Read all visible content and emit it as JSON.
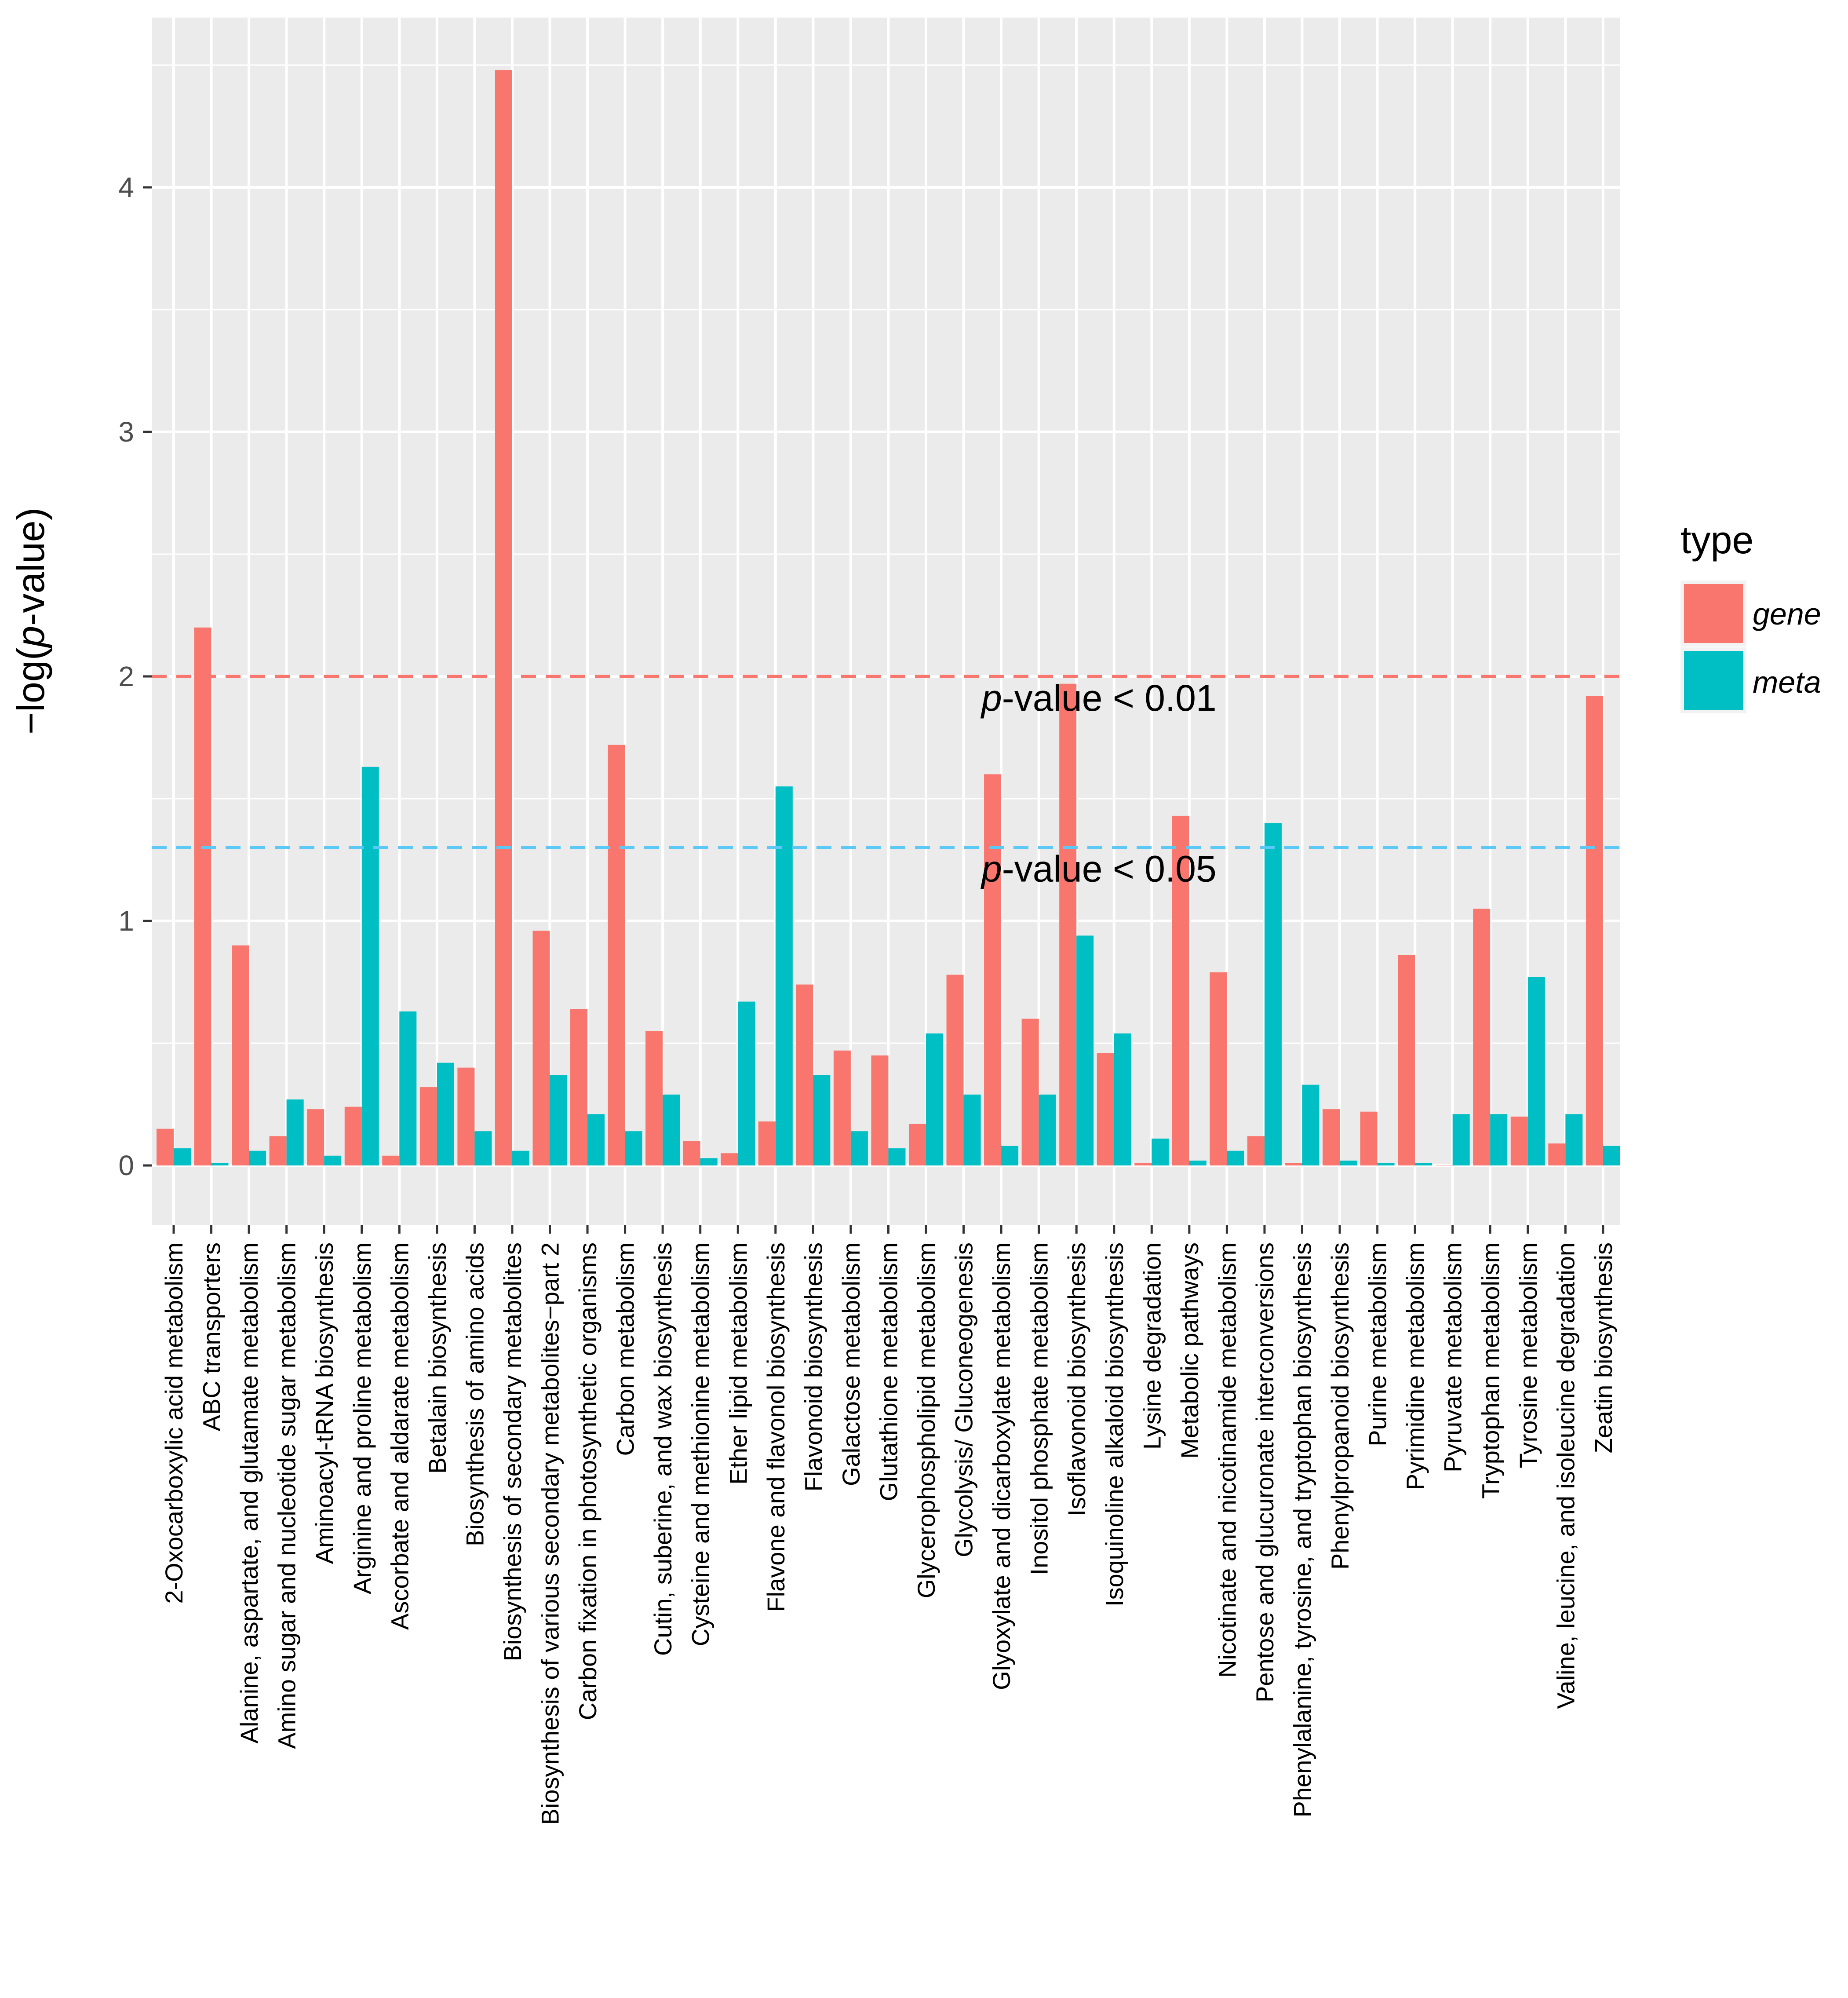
{
  "chart_data": {
    "type": "bar",
    "title": "",
    "xlabel": "",
    "ylabel": "−log(p-value)",
    "ylabel_parts": {
      "prefix": "−log(",
      "italic": "p",
      "suffix": "-value)"
    },
    "ylim": [
      -0.22,
      4.65
    ],
    "yticks": [
      "0",
      "1",
      "2",
      "3",
      "4"
    ],
    "categories": [
      "2-Oxocarboxylic acid metabolism",
      "ABC transporters",
      "Alanine,  aspartate, and glutamate metabolism",
      "Amino sugar and nucleotide sugar metabolism",
      "Aminoacyl-tRNA biosynthesis",
      "Arginine and proline metabolism",
      "Ascorbate and aldarate metabolism",
      "Betalain biosynthesis",
      "Biosynthesis of amino acids",
      "Biosynthesis of secondary metabolites",
      "Biosynthesis of various secondary metabolites−part 2",
      "Carbon fixation in photosynthetic organisms",
      "Carbon metabolism",
      "Cutin, suberine, and wax biosynthesis",
      "Cysteine and methionine metabolism",
      "Ether lipid metabolism",
      "Flavone and flavonol biosynthesis",
      "Flavonoid biosynthesis",
      "Galactose metabolism",
      "Glutathione metabolism",
      "Glycerophospholipid metabolism",
      "Glycolysis/ Gluconeogenesis",
      "Glyoxylate and dicarboxylate metabolism",
      "Inositol phosphate metabolism",
      "Isoflavonoid biosynthesis",
      "Isoquinoline alkaloid biosynthesis",
      "Lysine degradation",
      "Metabolic pathways",
      "Nicotinate and nicotinamide metabolism",
      "Pentose and glucuronate interconversions",
      "Phenylalanine, tyrosine, and tryptophan biosynthesis",
      "Phenylpropanoid biosynthesis",
      "Purine metabolism",
      "Pyrimidine metabolism",
      "Pyruvate metabolism",
      "Tryptophan metabolism",
      "Tyrosine metabolism",
      "Valine, leucine, and isoleucine degradation",
      "Zeatin biosynthesis"
    ],
    "series": [
      {
        "name": "gene",
        "color": "#F8766D",
        "values": [
          0.15,
          2.2,
          0.9,
          0.12,
          0.23,
          0.24,
          0.04,
          0.32,
          0.4,
          4.48,
          0.96,
          0.64,
          1.72,
          0.55,
          0.1,
          0.05,
          0.18,
          0.74,
          0.47,
          0.45,
          0.17,
          0.78,
          1.6,
          0.6,
          1.97,
          0.46,
          0.01,
          1.43,
          0.79,
          0.12,
          0.01,
          0.23,
          0.22,
          0.86,
          0.0,
          1.05,
          0.2,
          0.09,
          1.92
        ]
      },
      {
        "name": "meta",
        "color": "#00BFC4",
        "values": [
          0.07,
          0.01,
          0.06,
          0.27,
          0.04,
          1.63,
          0.63,
          0.42,
          0.14,
          0.06,
          0.37,
          0.21,
          0.14,
          0.29,
          0.03,
          0.67,
          1.55,
          0.37,
          0.14,
          0.07,
          0.54,
          0.29,
          0.08,
          0.29,
          0.94,
          0.54,
          0.11,
          0.02,
          0.06,
          1.4,
          0.33,
          0.02,
          0.01,
          0.01,
          0.21,
          0.21,
          0.77,
          0.21,
          0.08
        ]
      }
    ],
    "reference_lines": [
      {
        "value": 2.0,
        "color": "#F8766D",
        "style": "dashed",
        "label_italic": "p",
        "label_rest": "-value < 0.01"
      },
      {
        "value": 1.301,
        "color": "#5BC8F5",
        "style": "dashed",
        "label_italic": "p",
        "label_rest": "-value < 0.05"
      }
    ],
    "legend": {
      "title": "type",
      "position": "right",
      "entries": [
        "gene",
        "meta"
      ]
    },
    "grid": true,
    "panel_background": "#EBEBEB"
  }
}
